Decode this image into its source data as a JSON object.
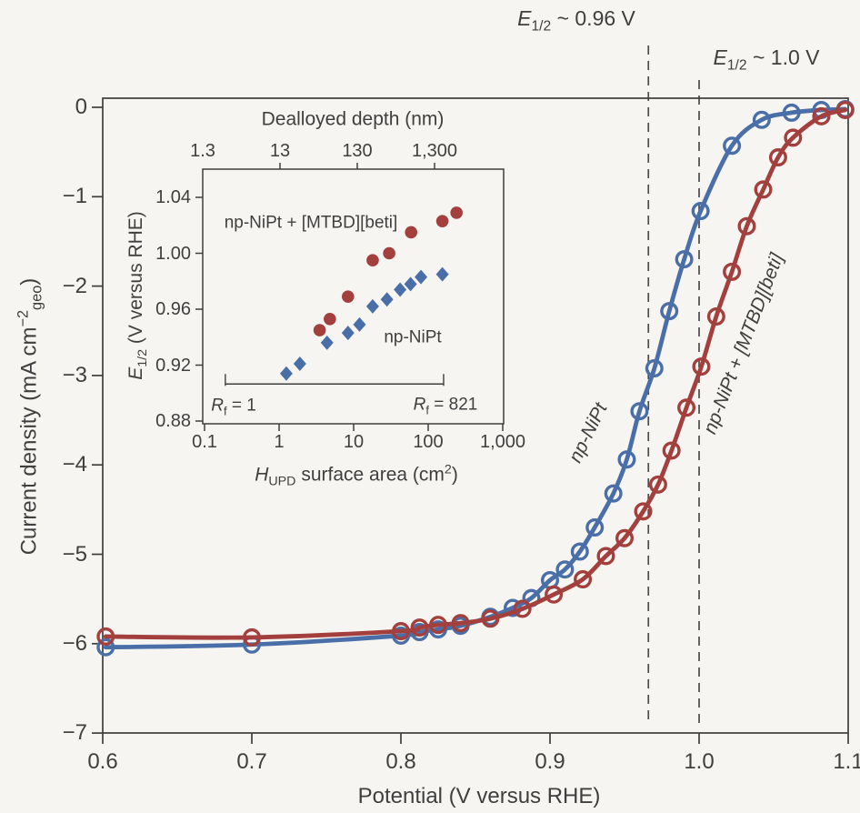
{
  "figure": {
    "background": "#f6f5f2",
    "frame_color": "#3e3e3e",
    "text_color": "#3f3f3f",
    "dashed_line_color": "#4b4b4b",
    "blue": "#4a6fa8",
    "red": "#a3403d"
  },
  "labels": {
    "main_ylabel": {
      "pre": "Current density (mA cm",
      "sup": "−2",
      "sub": "geo",
      "post": ")"
    },
    "inset_xlabel": {
      "pre": "H",
      "sub": "UPD",
      "mid": " surface area (cm",
      "sup": "2",
      "post": ")"
    },
    "inset_ylabel": {
      "pre": "E",
      "sub": "1/2",
      "post": " (V versus RHE)"
    },
    "ann_096": {
      "pre": "E",
      "sub": "1/2",
      "post": " ~ 0.96 V"
    },
    "ann_10": {
      "pre": "E",
      "sub": "1/2",
      "post": " ~ 1.0 V"
    },
    "rf_left": {
      "pre": "R",
      "sub": "f",
      "post": " = 1"
    },
    "rf_right": {
      "pre": "R",
      "sub": "f",
      "post": " = 821"
    }
  },
  "chart_data": [
    {
      "id": "main",
      "type": "line",
      "xlabel": "Potential (V versus RHE)",
      "ylabel": "Current density (mA cm−2 geo)",
      "xlim": [
        0.6,
        1.1
      ],
      "ylim": [
        -7,
        0.1
      ],
      "grid": false,
      "x_ticks": [
        {
          "v": 0.6,
          "label": "0.6"
        },
        {
          "v": 0.7,
          "label": "0.7"
        },
        {
          "v": 0.8,
          "label": "0.8"
        },
        {
          "v": 0.9,
          "label": "0.9"
        },
        {
          "v": 1.0,
          "label": "1.0"
        },
        {
          "v": 1.1,
          "label": "1.1"
        }
      ],
      "y_ticks": [
        {
          "v": 0,
          "label": "0"
        },
        {
          "v": -1,
          "label": "−1"
        },
        {
          "v": -2,
          "label": "−2"
        },
        {
          "v": -3,
          "label": "−3"
        },
        {
          "v": -4,
          "label": "−4"
        },
        {
          "v": -5,
          "label": "−5"
        },
        {
          "v": -6,
          "label": "−6"
        },
        {
          "v": -7,
          "label": "−7"
        }
      ],
      "series": [
        {
          "name": "np-NiPt",
          "color_key": "blue",
          "marker": "open-circle",
          "points": [
            [
              0.602,
              -6.04
            ],
            [
              0.7,
              -6.01
            ],
            [
              0.8,
              -5.91
            ],
            [
              0.8125,
              -5.87
            ],
            [
              0.825,
              -5.84
            ],
            [
              0.84,
              -5.8
            ],
            [
              0.86,
              -5.7
            ],
            [
              0.875,
              -5.6
            ],
            [
              0.8875,
              -5.49
            ],
            [
              0.9,
              -5.29
            ],
            [
              0.91,
              -5.17
            ],
            [
              0.92,
              -4.97
            ],
            [
              0.93,
              -4.7
            ],
            [
              0.9425,
              -4.32
            ],
            [
              0.9515,
              -3.94
            ],
            [
              0.96,
              -3.4
            ],
            [
              0.97,
              -2.92
            ],
            [
              0.98,
              -2.28
            ],
            [
              0.99,
              -1.7
            ],
            [
              1.001,
              -1.16
            ],
            [
              1.022,
              -0.43
            ],
            [
              1.042,
              -0.14
            ],
            [
              1.062,
              -0.06
            ],
            [
              1.082,
              -0.03
            ],
            [
              1.098,
              -0.02
            ]
          ]
        },
        {
          "name": "np-NiPt + [MTBD][beti]",
          "color_key": "red",
          "marker": "open-circle",
          "points": [
            [
              0.602,
              -5.92
            ],
            [
              0.7,
              -5.93
            ],
            [
              0.8,
              -5.86
            ],
            [
              0.8125,
              -5.82
            ],
            [
              0.825,
              -5.79
            ],
            [
              0.84,
              -5.77
            ],
            [
              0.86,
              -5.72
            ],
            [
              0.8815,
              -5.61
            ],
            [
              0.9025,
              -5.45
            ],
            [
              0.922,
              -5.28
            ],
            [
              0.9375,
              -5.02
            ],
            [
              0.95,
              -4.82
            ],
            [
              0.9625,
              -4.52
            ],
            [
              0.9725,
              -4.22
            ],
            [
              0.9815,
              -3.84
            ],
            [
              0.9915,
              -3.36
            ],
            [
              1.0015,
              -2.9
            ],
            [
              1.0115,
              -2.34
            ],
            [
              1.022,
              -1.84
            ],
            [
              1.032,
              -1.33
            ],
            [
              1.043,
              -0.92
            ],
            [
              1.053,
              -0.56
            ],
            [
              1.063,
              -0.34
            ],
            [
              1.082,
              -0.1
            ],
            [
              1.098,
              -0.03
            ]
          ]
        }
      ],
      "annotations": {
        "dashed_lines": [
          {
            "x": 0.966
          },
          {
            "x": 1.0
          }
        ],
        "half_wave_labels": [
          "E1/2 ~ 0.96 V",
          "E1/2 ~ 1.0 V"
        ]
      }
    },
    {
      "id": "inset",
      "type": "scatter",
      "x_scale": "log",
      "xlabel": "H UPD surface area (cm2)",
      "x2label": "Dealloyed depth (nm)",
      "ylabel": "E 1/2 (V versus RHE)",
      "xlim": [
        0.095,
        1050
      ],
      "ylim": [
        0.878,
        1.06
      ],
      "x_ticks": [
        {
          "v": 0.1,
          "label": "0.1"
        },
        {
          "v": 1,
          "label": "1"
        },
        {
          "v": 10,
          "label": "10"
        },
        {
          "v": 100,
          "label": "100"
        },
        {
          "v": 1000,
          "label": "1,000"
        }
      ],
      "x2_ticks": [
        {
          "v": 1.3,
          "label": "1.3",
          "tick": false
        },
        {
          "v": 13,
          "label": "13",
          "tick": true
        },
        {
          "v": 130,
          "label": "130",
          "tick": true
        },
        {
          "v": 1300,
          "label": "1,300",
          "tick": true
        }
      ],
      "y_ticks": [
        {
          "v": 1.04,
          "label": "1.04"
        },
        {
          "v": 1.0,
          "label": "1.00"
        },
        {
          "v": 0.96,
          "label": "0.96"
        },
        {
          "v": 0.92,
          "label": "0.92"
        },
        {
          "v": 0.88,
          "label": "0.88"
        }
      ],
      "series": [
        {
          "name": "np-NiPt + [MTBD][beti]",
          "color_key": "red",
          "marker": "filled-circle",
          "points": [
            [
              3.5,
              0.945
            ],
            [
              4.8,
              0.953
            ],
            [
              8.4,
              0.969
            ],
            [
              18,
              0.995
            ],
            [
              30,
              1.0
            ],
            [
              59,
              1.015
            ],
            [
              155,
              1.023
            ],
            [
              240,
              1.029
            ]
          ]
        },
        {
          "name": "np-NiPt",
          "color_key": "blue",
          "marker": "filled-diamond",
          "points": [
            [
              1.25,
              0.914
            ],
            [
              1.9,
              0.921
            ],
            [
              4.4,
              0.936
            ],
            [
              8.4,
              0.943
            ],
            [
              12,
              0.949
            ],
            [
              18,
              0.962
            ],
            [
              28,
              0.967
            ],
            [
              42,
              0.974
            ],
            [
              58,
              0.978
            ],
            [
              80,
              0.983
            ],
            [
              155,
              0.985
            ]
          ]
        }
      ],
      "rf_bracket": {
        "x_left": 0.19,
        "x_right": 161,
        "y": 0.9065,
        "label_left": "Rf = 1",
        "label_right": "Rf = 821"
      }
    }
  ]
}
